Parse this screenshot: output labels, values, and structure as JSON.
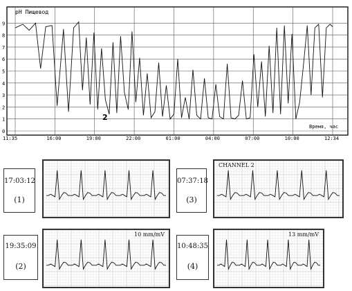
{
  "chart_data": [
    {
      "type": "line",
      "title": "pH Пищевод",
      "xlabel": "Время, час",
      "ylabel": "",
      "ylim": [
        0,
        10
      ],
      "grid": true,
      "y_ticks": [
        "0",
        "1",
        "2",
        "3",
        "4",
        "5",
        "6",
        "7",
        "8",
        "9"
      ],
      "x_ticks": [
        "11:35",
        "16:00",
        "19:00",
        "22:00",
        "01:00",
        "04:00",
        "07:00",
        "10:00",
        "12:34"
      ],
      "annotation": "2",
      "series": [
        {
          "x": [
            0,
            0.6,
            1.1,
            1.6,
            2.0,
            2.4,
            2.9,
            3.3,
            3.8,
            4.2,
            4.6,
            5.0,
            5.3,
            5.6,
            5.9,
            6.2,
            6.5,
            6.8,
            7.1,
            7.4,
            7.7,
            8.0,
            8.3,
            8.6,
            8.9,
            9.2,
            9.5,
            9.8,
            10.1,
            10.4,
            10.7,
            11.0,
            11.3,
            11.6,
            11.9,
            12.2,
            12.5,
            12.8,
            13.1,
            13.4,
            13.7,
            14.0,
            14.3,
            14.6,
            14.9,
            15.2,
            15.5,
            15.8,
            16.1,
            16.4,
            16.7,
            17.0,
            17.3,
            17.6,
            17.9,
            18.2,
            18.5,
            18.8,
            19.1,
            19.4,
            19.7,
            20.0,
            20.3,
            20.6,
            20.9,
            21.2,
            21.5,
            21.8,
            22.1,
            22.4,
            22.7,
            23.0,
            23.3,
            23.6,
            23.9,
            24.2,
            24.5,
            24.8,
            25.0
          ],
          "y": [
            8.6,
            8.9,
            8.4,
            9.0,
            5.2,
            8.7,
            8.8,
            2.1,
            8.5,
            1.6,
            8.6,
            9.1,
            3.4,
            7.8,
            2.2,
            8.2,
            1.8,
            6.9,
            2.6,
            1.4,
            7.4,
            1.5,
            7.9,
            3.2,
            1.8,
            8.3,
            2.4,
            6.1,
            1.3,
            4.8,
            1.1,
            1.6,
            5.7,
            1.2,
            3.8,
            1.0,
            1.4,
            6.0,
            1.1,
            2.8,
            1.0,
            5.1,
            1.3,
            1.0,
            4.4,
            1.1,
            1.0,
            3.9,
            1.2,
            1.0,
            5.6,
            1.1,
            1.0,
            1.3,
            4.2,
            1.0,
            1.1,
            6.4,
            2.0,
            5.8,
            1.2,
            7.1,
            1.5,
            8.6,
            1.4,
            8.8,
            2.3,
            8.1,
            1.0,
            2.4,
            5.5,
            8.8,
            3.0,
            8.6,
            8.9,
            2.8,
            8.6,
            8.9,
            8.7
          ]
        }
      ]
    },
    {
      "type": "line",
      "title": "",
      "time": "17:03:12",
      "number": "(1)",
      "channel_label": "",
      "scale": "",
      "y": [
        0,
        0,
        0.05,
        0,
        -0.05,
        1.0,
        -0.15,
        0,
        0.12,
        0.1,
        0,
        0,
        0,
        0.05,
        0,
        -0.05,
        1.0,
        -0.15,
        0,
        0.12,
        0.1,
        0,
        0,
        0,
        0.05,
        0,
        -0.05,
        1.0,
        -0.15,
        0,
        0.12,
        0.1,
        0,
        0,
        0,
        0.05,
        0,
        -0.05,
        1.0,
        -0.15,
        0,
        0.12,
        0.1,
        0,
        0,
        0,
        0.05,
        0,
        -0.05,
        1.0,
        -0.15,
        0,
        0.12,
        0.1,
        0,
        0
      ]
    },
    {
      "type": "line",
      "title": "",
      "time": "07:37:18",
      "number": "(3)",
      "channel_label": "CHANNEL 2",
      "scale": "",
      "y": [
        0,
        0,
        0.05,
        0,
        -0.05,
        1.0,
        -0.15,
        0,
        0.12,
        0.1,
        0,
        0,
        0,
        0.05,
        0,
        -0.05,
        1.0,
        -0.15,
        0,
        0.12,
        0.1,
        0,
        0,
        0,
        0.05,
        0,
        -0.05,
        1.0,
        -0.15,
        0,
        0.12,
        0.1,
        0,
        0,
        0,
        0.05,
        0,
        -0.05,
        1.0,
        -0.15,
        0,
        0.12,
        0.1,
        0,
        0,
        0,
        0.05,
        0,
        -0.05,
        1.0,
        -0.15,
        0,
        0.12,
        0.1,
        0,
        0
      ]
    },
    {
      "type": "line",
      "title": "",
      "time": "19:35:09",
      "number": "(2)",
      "channel_label": "",
      "scale": "10 mm/mV",
      "y": [
        0,
        0,
        0.05,
        0,
        -0.05,
        1.0,
        -0.15,
        0,
        0.12,
        0.1,
        0,
        0,
        0,
        0.05,
        0,
        -0.05,
        1.0,
        -0.15,
        0,
        0.12,
        0.1,
        0,
        0,
        0,
        0.05,
        0,
        -0.05,
        1.0,
        -0.15,
        0,
        0.12,
        0.1,
        0,
        0,
        0,
        0.05,
        0,
        -0.05,
        1.0,
        -0.15,
        0,
        0.12,
        0.1,
        0,
        0,
        0,
        0.05,
        0,
        -0.05,
        1.0,
        -0.15,
        0,
        0.12,
        0.1,
        0,
        0
      ]
    },
    {
      "type": "line",
      "title": "",
      "time": "10:48:35",
      "number": "(4)",
      "channel_label": "",
      "scale": "13 mm/mV",
      "y": [
        0,
        0,
        0.05,
        0,
        -0.05,
        1.0,
        -0.15,
        0,
        0.12,
        0.1,
        0,
        0,
        0,
        0.05,
        0,
        -0.05,
        1.0,
        -0.15,
        0,
        0.12,
        0.1,
        0,
        0,
        0,
        0.05,
        0,
        -0.05,
        1.0,
        -0.15,
        0,
        0.12,
        0.1,
        0,
        0,
        0,
        0.05,
        0,
        -0.05,
        1.0,
        -0.15,
        0,
        0.12,
        0.1,
        0,
        0,
        0,
        0.05,
        0,
        -0.05,
        1.0,
        -0.15,
        0,
        0.12,
        0.1,
        0,
        0
      ]
    }
  ]
}
